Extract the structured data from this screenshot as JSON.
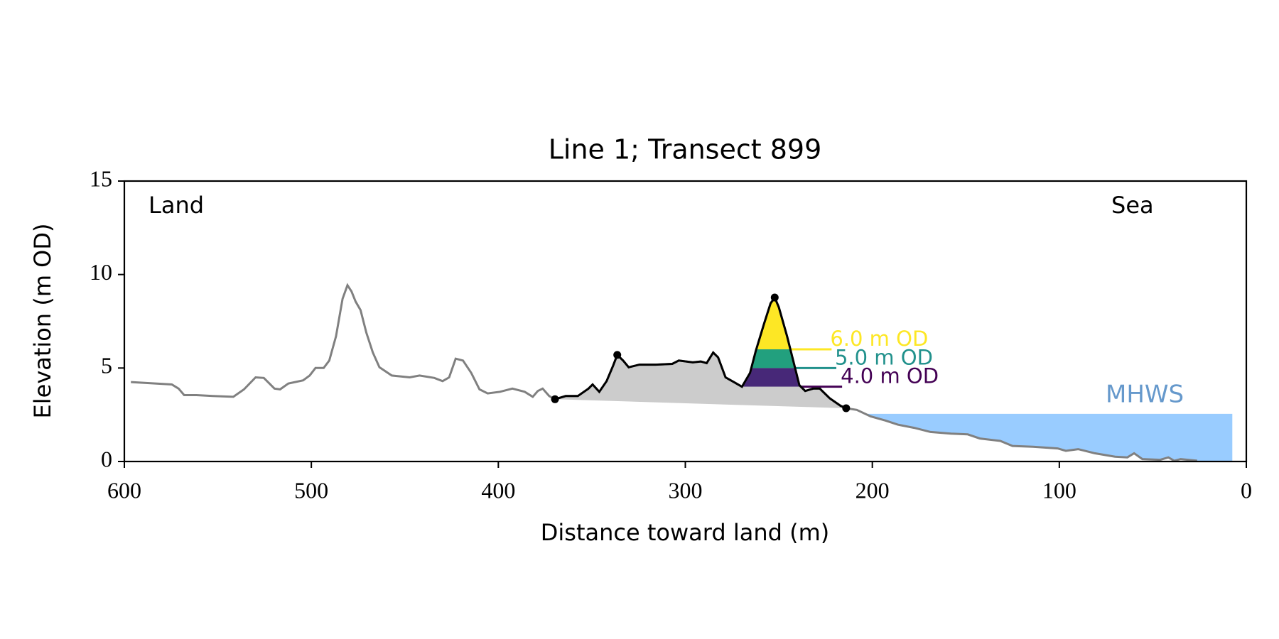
{
  "chart_data": {
    "type": "profile",
    "title": "Line 1; Transect 899",
    "x_label": "Distance toward land (m)",
    "y_label": "Elevation (m OD)",
    "annotations": {
      "land": "Land",
      "sea": "Sea"
    },
    "xlim": [
      600,
      0
    ],
    "ylim": [
      0,
      15
    ],
    "xticks": [
      600,
      500,
      400,
      300,
      200,
      100,
      0
    ],
    "yticks": [
      0,
      5,
      10,
      15
    ],
    "profile_color": "#808080",
    "dune_color": "#000000",
    "dune_fill": "#cccccc",
    "landward": {
      "x": [
        596.5,
        574.6,
        571,
        568,
        561.4,
        552.6,
        541.7,
        536,
        529.8,
        525.4,
        519.7,
        516.7,
        512.3,
        504.4,
        500.9,
        497.8,
        493.4,
        490.4,
        486.8,
        483.3,
        480.7,
        478.5,
        476.3,
        473.7,
        470.6,
        467.1,
        463.6,
        457,
        447.4,
        442.1,
        434.2,
        429.8,
        426.3,
        422.8,
        418.9,
        414.5,
        410.1,
        405.7,
        399.1,
        392.5,
        385.9,
        381.6,
        378.9,
        376.3,
        372.8
      ],
      "y": [
        4.25,
        4.12,
        3.9,
        3.55,
        3.55,
        3.5,
        3.46,
        3.86,
        4.5,
        4.47,
        3.9,
        3.86,
        4.17,
        4.34,
        4.6,
        5.0,
        5.0,
        5.4,
        6.7,
        8.7,
        9.43,
        9.1,
        8.55,
        8.1,
        6.9,
        5.83,
        5.04,
        4.6,
        4.5,
        4.6,
        4.47,
        4.3,
        4.5,
        5.5,
        5.4,
        4.74,
        3.86,
        3.64,
        3.73,
        3.9,
        3.73,
        3.46,
        3.77,
        3.9,
        3.5
      ]
    },
    "dune": {
      "x": [
        369.7,
        364,
        357.5,
        351.8,
        349.6,
        346,
        342.1,
        338.6,
        336.4,
        333.3,
        330.3,
        324.6,
        315.8,
        307,
        303.5,
        296,
        291.7,
        288.6,
        285.1,
        282.5,
        278.5,
        274.1,
        269.7,
        265.4,
        262.3,
        257.9,
        254.4,
        252.2,
        250,
        245.6,
        241.2,
        239,
        235.9,
        231.6,
        228.1,
        222.8,
        217,
        214
      ],
      "y": [
        3.33,
        3.5,
        3.5,
        3.9,
        4.12,
        3.73,
        4.3,
        5.13,
        5.7,
        5.4,
        5.04,
        5.18,
        5.18,
        5.22,
        5.4,
        5.3,
        5.35,
        5.26,
        5.83,
        5.57,
        4.5,
        4.25,
        4.0,
        4.74,
        5.92,
        7.37,
        8.46,
        8.77,
        8.25,
        6.7,
        4.96,
        4.08,
        3.77,
        3.9,
        3.9,
        3.38,
        2.98,
        2.85
      ]
    },
    "seaward": {
      "x": [
        208.3,
        200.9,
        193,
        186.4,
        177.6,
        168.9,
        157.9,
        149,
        142.5,
        131.6,
        125,
        114,
        100.9,
        96.5,
        89.9,
        81.1,
        70.2,
        63.6,
        60,
        55.6,
        46,
        41.7,
        38.6,
        35.1,
        26.3
      ],
      "y": [
        2.76,
        2.41,
        2.19,
        1.97,
        1.8,
        1.58,
        1.49,
        1.45,
        1.23,
        1.1,
        0.83,
        0.79,
        0.7,
        0.57,
        0.66,
        0.44,
        0.26,
        0.22,
        0.44,
        0.13,
        0.09,
        0.22,
        0.04,
        0.13,
        0.04
      ]
    },
    "key_points": {
      "x": [
        369.7,
        336.4,
        252.2,
        214
      ],
      "y": [
        3.33,
        5.7,
        8.77,
        2.85
      ]
    },
    "levels": [
      {
        "value": 6.0,
        "label": "6.0 m OD",
        "color": "#fde725",
        "fill": "#fde725"
      },
      {
        "value": 5.0,
        "label": "5.0 m OD",
        "color": "#21918c",
        "fill": "#22a07e"
      },
      {
        "value": 4.0,
        "label": "4.0 m OD",
        "color": "#440154",
        "fill": "#472878"
      }
    ],
    "mhws": {
      "label": "MHWS",
      "value": 2.55,
      "x_end": 7.5,
      "color": "#99ccff",
      "text_color": "#6699cc"
    }
  }
}
